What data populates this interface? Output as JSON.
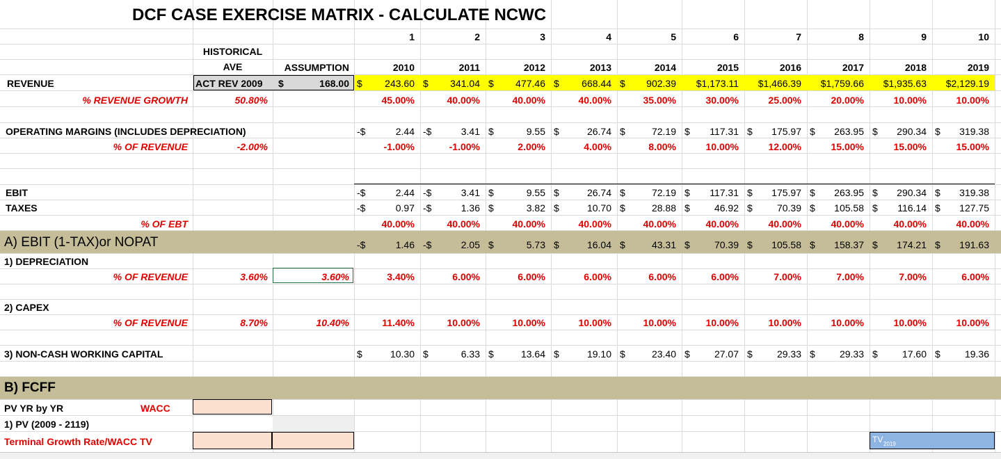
{
  "title": "DCF CASE EXERCISE MATRIX - CALCULATE NCWC",
  "period_numbers": [
    "1",
    "2",
    "3",
    "4",
    "5",
    "6",
    "7",
    "8",
    "9",
    "10"
  ],
  "years": [
    "2010",
    "2011",
    "2012",
    "2013",
    "2014",
    "2015",
    "2016",
    "2017",
    "2018",
    "2019"
  ],
  "headers": {
    "historical_line1": "HISTORICAL",
    "historical_line2": "AVE",
    "assumption": "ASSUMPTION"
  },
  "revenue": {
    "label": "REVENUE",
    "act_rev_label": "ACT REV 2009",
    "act_rev_currency": "$",
    "act_rev_value": "168.00",
    "values": [
      "243.60",
      "341.04",
      "477.46",
      "668.44",
      "902.39",
      "$1,173.11",
      "$1,466.39",
      "$1,759.66",
      "$1,935.63",
      "$2,129.19"
    ]
  },
  "revenue_growth": {
    "label": "% REVENUE GROWTH",
    "historical": "50.80%",
    "values": [
      "45.00%",
      "40.00%",
      "40.00%",
      "40.00%",
      "35.00%",
      "30.00%",
      "25.00%",
      "20.00%",
      "10.00%",
      "10.00%"
    ]
  },
  "operating_margins": {
    "label": "OPERATING MARGINS (INCLUDES DEPRECIATION)",
    "values": [
      "2.44",
      "3.41",
      "9.55",
      "26.74",
      "72.19",
      "117.31",
      "175.97",
      "263.95",
      "290.34",
      "319.38"
    ],
    "signs": [
      "-$",
      "-$",
      "$",
      "$",
      "$",
      "$",
      "$",
      "$",
      "$",
      "$"
    ]
  },
  "margin_pct": {
    "label": "% OF REVENUE",
    "historical": "-2.00%",
    "values": [
      "-1.00%",
      "-1.00%",
      "2.00%",
      "4.00%",
      "8.00%",
      "10.00%",
      "12.00%",
      "15.00%",
      "15.00%",
      "15.00%"
    ]
  },
  "ebit": {
    "label": "EBIT",
    "values": [
      "2.44",
      "3.41",
      "9.55",
      "26.74",
      "72.19",
      "117.31",
      "175.97",
      "263.95",
      "290.34",
      "319.38"
    ],
    "signs": [
      "-$",
      "-$",
      "$",
      "$",
      "$",
      "$",
      "$",
      "$",
      "$",
      "$"
    ]
  },
  "taxes": {
    "label": "TAXES",
    "values": [
      "0.97",
      "1.36",
      "3.82",
      "10.70",
      "28.88",
      "46.92",
      "70.39",
      "105.58",
      "116.14",
      "127.75"
    ],
    "signs": [
      "-$",
      "-$",
      "$",
      "$",
      "$",
      "$",
      "$",
      "$",
      "$",
      "$"
    ]
  },
  "tax_pct": {
    "label": "% OF EBT",
    "values": [
      "40.00%",
      "40.00%",
      "40.00%",
      "40.00%",
      "40.00%",
      "40.00%",
      "40.00%",
      "40.00%",
      "40.00%",
      "40.00%"
    ]
  },
  "nopat": {
    "label": "A) EBIT (1-TAX)or  NOPAT",
    "values": [
      "1.46",
      "2.05",
      "5.73",
      "16.04",
      "43.31",
      "70.39",
      "105.58",
      "158.37",
      "174.21",
      "191.63"
    ],
    "signs": [
      "-$",
      "-$",
      "$",
      "$",
      "$",
      "$",
      "$",
      "$",
      "$",
      "$"
    ]
  },
  "depreciation": {
    "label": "1) DEPRECIATION",
    "pct_label": "% OF REVENUE",
    "historical": "3.60%",
    "assumption": "3.60%",
    "values": [
      "3.40%",
      "6.00%",
      "6.00%",
      "6.00%",
      "6.00%",
      "6.00%",
      "7.00%",
      "7.00%",
      "7.00%",
      "6.00%"
    ]
  },
  "capex": {
    "label": "2) CAPEX",
    "pct_label": "% OF REVENUE",
    "historical": "8.70%",
    "assumption": "10.40%",
    "values": [
      "11.40%",
      "10.00%",
      "10.00%",
      "10.00%",
      "10.00%",
      "10.00%",
      "10.00%",
      "10.00%",
      "10.00%",
      "10.00%"
    ]
  },
  "ncwc": {
    "label": "3) NON-CASH WORKING CAPITAL",
    "values": [
      "10.30",
      "6.33",
      "13.64",
      "19.10",
      "23.40",
      "27.07",
      "29.33",
      "29.33",
      "17.60",
      "19.36"
    ],
    "signs": [
      "$",
      "$",
      "$",
      "$",
      "$",
      "$",
      "$",
      "$",
      "$",
      "$"
    ]
  },
  "fcff": {
    "label": "B) FCFF",
    "pv_label": "PV YR by  YR",
    "wacc_label": "WACC",
    "pv_range_label": "1) PV (2009 - 2119)",
    "terminal_label": "Terminal Growth Rate/WACC TV",
    "tv_label": "TV",
    "tv_sub": "2019"
  },
  "colors": {
    "yellow": "#ffff00",
    "tan": "#c4bd97",
    "red": "#e00000",
    "peach": "#fbe0cf",
    "blue": "#8db4e2",
    "gray_cell": "#d9d9d9"
  }
}
